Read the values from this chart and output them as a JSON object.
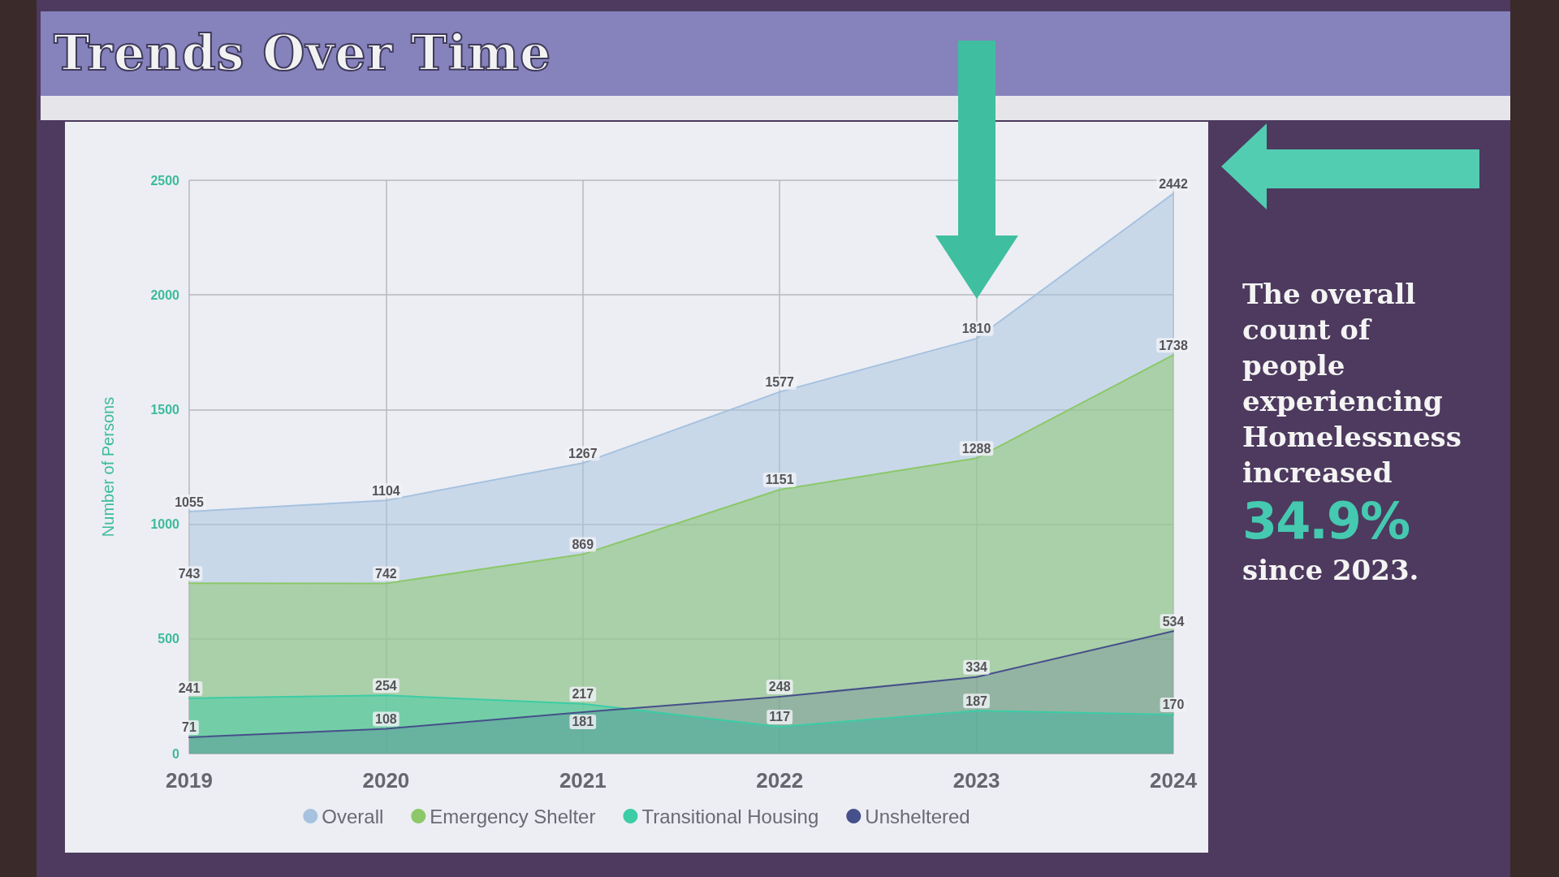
{
  "chart_data": {
    "type": "area",
    "title": "Trends Over Time",
    "ylabel": "Number of Persons",
    "categories": [
      "2019",
      "2020",
      "2021",
      "2022",
      "2023",
      "2024"
    ],
    "series": [
      {
        "name": "Overall",
        "color": "#a6c2df",
        "values": [
          1055,
          1104,
          1267,
          1577,
          1810,
          2442
        ]
      },
      {
        "name": "Emergency Shelter",
        "color": "#8cc86a",
        "values": [
          743,
          742,
          869,
          1151,
          1288,
          1738
        ]
      },
      {
        "name": "Transitional Housing",
        "color": "#3ccca6",
        "values": [
          241,
          254,
          217,
          117,
          187,
          170
        ]
      },
      {
        "name": "Unsheltered",
        "color": "#46508a",
        "values": [
          71,
          108,
          181,
          248,
          334,
          534
        ]
      }
    ],
    "ylim": [
      0,
      2500
    ],
    "yticks": [
      0,
      500,
      1000,
      1500,
      2000,
      2500
    ],
    "grid": true,
    "legend": "bottom",
    "marker": "none",
    "data_labels": true,
    "annotations": [
      "The overall count of people experiencing Homelessness increased",
      "34.9%",
      "since 2023."
    ]
  }
}
